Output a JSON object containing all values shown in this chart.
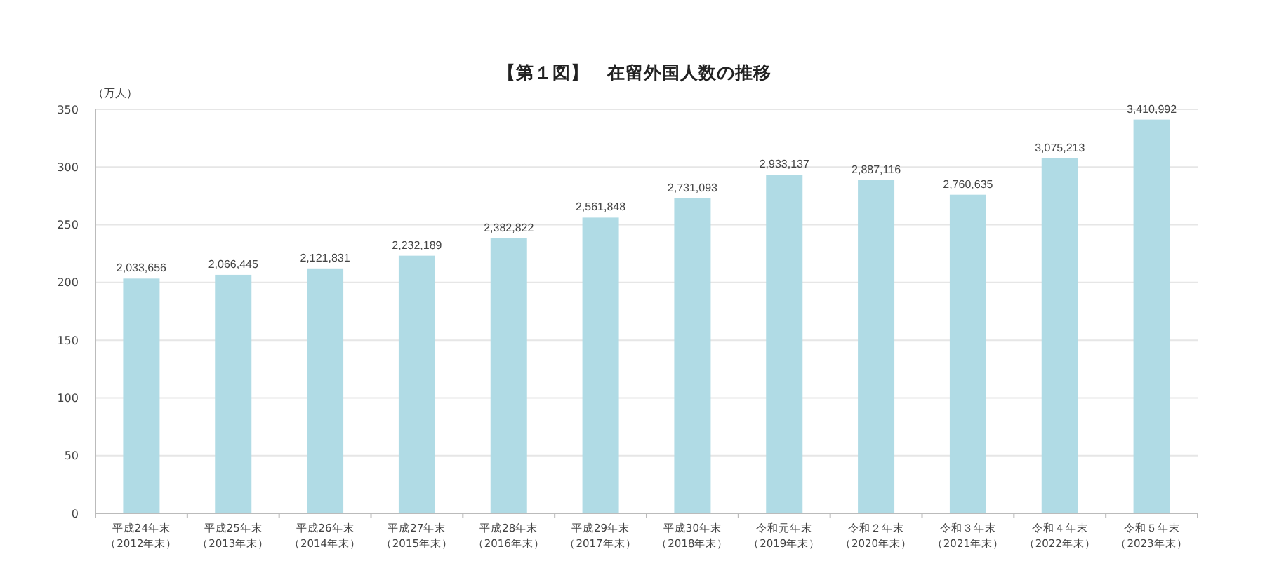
{
  "chart_data": {
    "type": "bar",
    "title": "【第１図】　在留外国人数の推移",
    "ylabel": "（万人）",
    "categories": [
      "平成24年末（2012年末）",
      "平成25年末（2013年末）",
      "平成26年末（2014年末）",
      "平成27年末（2015年末）",
      "平成28年末（2016年末）",
      "平成29年末（2017年末）",
      "平成30年末（2018年末）",
      "令和元年末（2019年末）",
      "令和２年末（2020年末）",
      "令和３年末（2021年末）",
      "令和４年末（2022年末）",
      "令和５年末（2023年末）"
    ],
    "values": [
      203.3656,
      206.6445,
      212.1831,
      223.2189,
      238.2822,
      256.1848,
      273.1093,
      293.3137,
      288.7116,
      276.0635,
      307.5213,
      341.0992
    ],
    "annotations": [
      {
        "text": "2,033,656",
        "x": "平成24年末（2012年末）",
        "y": 203.3656
      },
      {
        "text": "2,066,445",
        "x": "平成25年末（2013年末）",
        "y": 206.6445
      },
      {
        "text": "2,121,831",
        "x": "平成26年末（2014年末）",
        "y": 212.1831
      },
      {
        "text": "2,232,189",
        "x": "平成27年末（2015年末）",
        "y": 223.2189
      },
      {
        "text": "2,382,822",
        "x": "平成28年末（2016年末）",
        "y": 238.2822
      },
      {
        "text": "2,561,848",
        "x": "平成29年末（2017年末）",
        "y": 256.1848
      },
      {
        "text": "2,731,093",
        "x": "平成30年末（2018年末）",
        "y": 273.1093
      },
      {
        "text": "2,933,137",
        "x": "令和元年末（2019年末）",
        "y": 293.3137
      },
      {
        "text": "2,887,116",
        "x": "令和２年末（2020年末）",
        "y": 288.7116
      },
      {
        "text": "2,760,635",
        "x": "令和３年末（2021年末）",
        "y": 276.0635
      },
      {
        "text": "3,075,213",
        "x": "令和４年末（2022年末）",
        "y": 307.5213
      },
      {
        "text": "3,410,992",
        "x": "令和５年末（2023年末）",
        "y": 341.0992
      }
    ],
    "color": "#b0dbe5",
    "ylim": [
      0,
      350
    ],
    "yticks": [
      0,
      50,
      100,
      150,
      200,
      250,
      300,
      350
    ],
    "grid": "y"
  }
}
